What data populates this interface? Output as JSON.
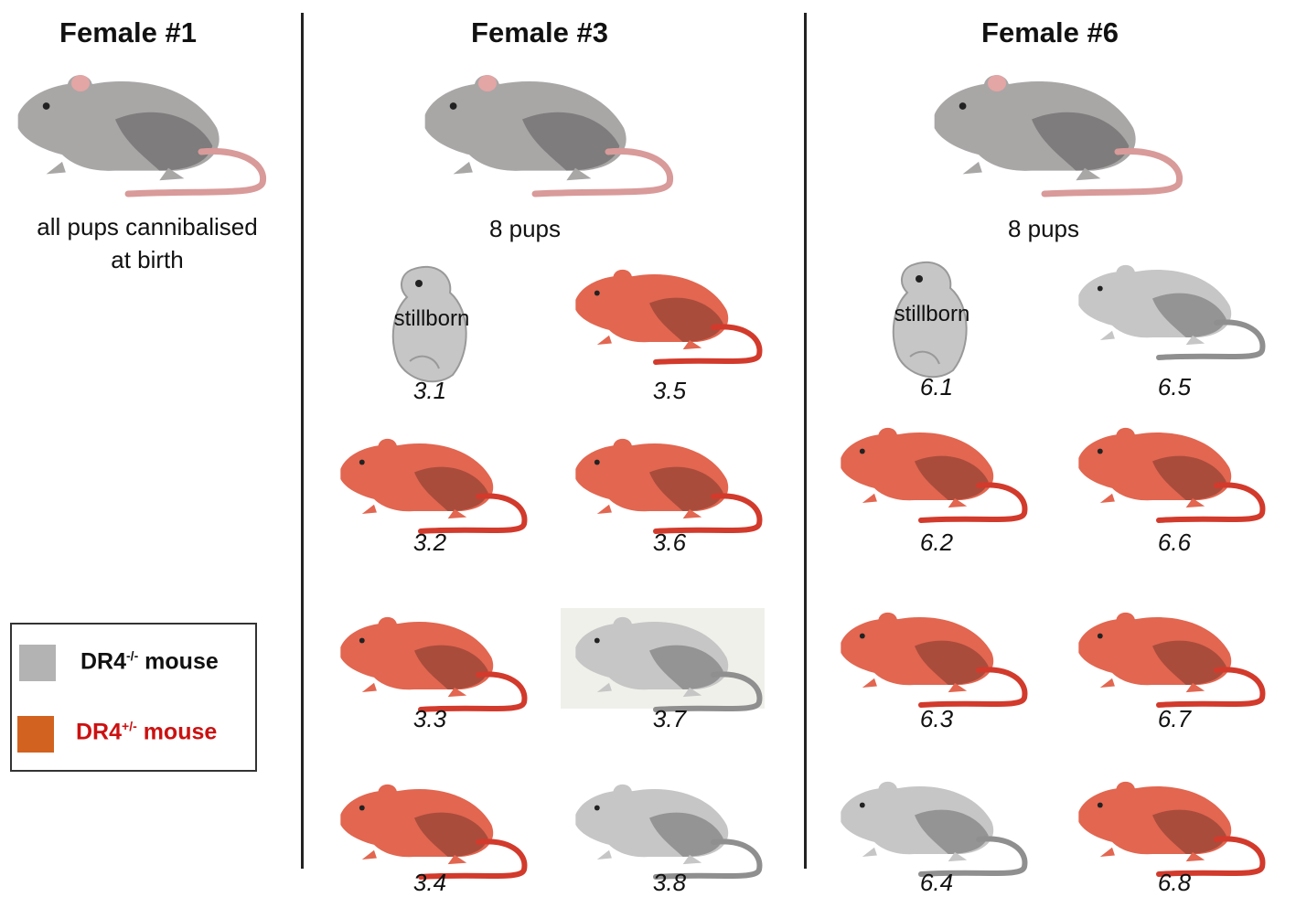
{
  "colors": {
    "adult": "#a9a6a6",
    "knockout": "#c6c6c6",
    "heterozygous": "#e26650",
    "tail_red": "#d23a2c",
    "legend_grey": "#b3b3b3",
    "legend_orange": "#d2621f",
    "legend_red_text": "#cc1111"
  },
  "female1": {
    "title": "Female #1",
    "note_line1": "all pups cannibalised",
    "note_line2": "at birth"
  },
  "female3": {
    "title": "Female #3",
    "note": "8 pups",
    "stillborn_text": "stillborn",
    "pups": [
      {
        "id": "3.1",
        "genotype": "stillborn"
      },
      {
        "id": "3.2",
        "genotype": "DR4+/-"
      },
      {
        "id": "3.3",
        "genotype": "DR4+/-"
      },
      {
        "id": "3.4",
        "genotype": "DR4+/-"
      },
      {
        "id": "3.5",
        "genotype": "DR4+/-"
      },
      {
        "id": "3.6",
        "genotype": "DR4+/-"
      },
      {
        "id": "3.7",
        "genotype": "DR4-/-"
      },
      {
        "id": "3.8",
        "genotype": "DR4-/-"
      }
    ]
  },
  "female6": {
    "title": "Female #6",
    "note": "8 pups",
    "stillborn_text": "stillborn",
    "pups": [
      {
        "id": "6.1",
        "genotype": "stillborn"
      },
      {
        "id": "6.2",
        "genotype": "DR4+/-"
      },
      {
        "id": "6.3",
        "genotype": "DR4+/-"
      },
      {
        "id": "6.4",
        "genotype": "DR4-/-"
      },
      {
        "id": "6.5",
        "genotype": "DR4-/-"
      },
      {
        "id": "6.6",
        "genotype": "DR4+/-"
      },
      {
        "id": "6.7",
        "genotype": "DR4+/-"
      },
      {
        "id": "6.8",
        "genotype": "DR4+/-"
      }
    ]
  },
  "legend": {
    "ko_label": "DR4",
    "ko_sup": "-/-",
    "ko_suffix": " mouse",
    "het_label": "DR4",
    "het_sup": "+/-",
    "het_suffix": " mouse"
  }
}
